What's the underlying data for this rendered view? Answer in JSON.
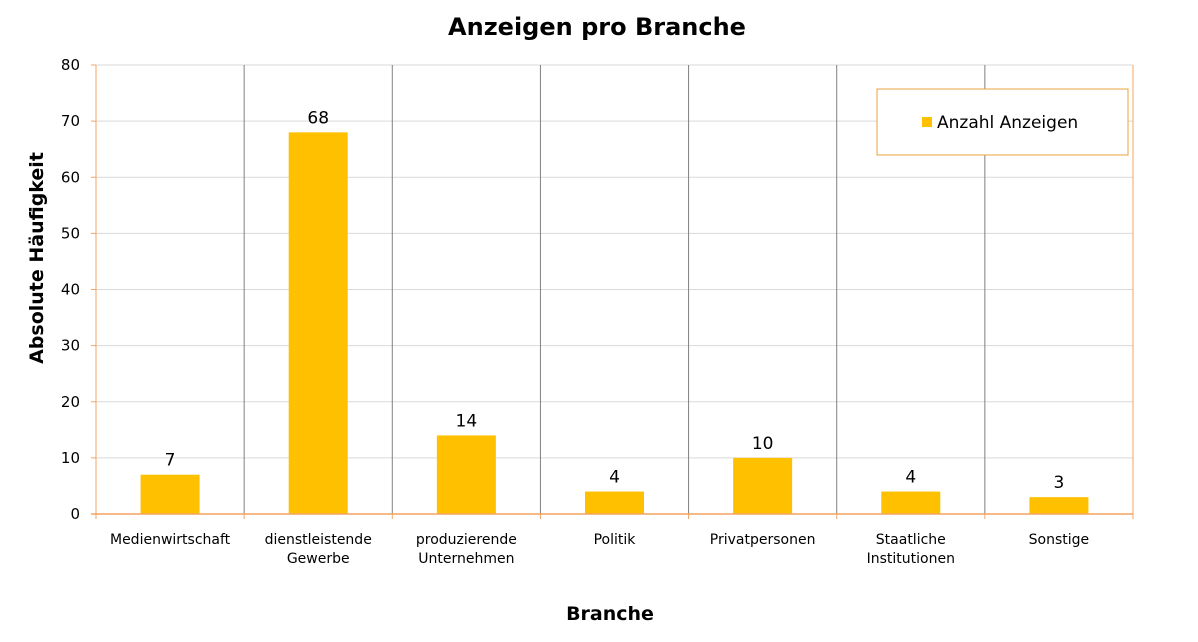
{
  "chart_data": {
    "type": "bar",
    "title": "Anzeigen pro Branche",
    "xlabel": "Branche",
    "ylabel": "Absolute Häufigkeit",
    "categories": [
      [
        "Medienwirtschaft"
      ],
      [
        "dienstleistende",
        "Gewerbe"
      ],
      [
        "produzierende",
        "Unternehmen"
      ],
      [
        "Politik"
      ],
      [
        "Privatpersonen"
      ],
      [
        "Staatliche",
        "Institutionen"
      ],
      [
        "Sonstige"
      ]
    ],
    "series": [
      {
        "name": "Anzahl Anzeigen",
        "values": [
          7,
          68,
          14,
          4,
          10,
          4,
          3
        ],
        "color": "#ffc000"
      }
    ],
    "ylim": [
      0,
      80
    ],
    "yticks": [
      0,
      10,
      20,
      30,
      40,
      50,
      60,
      70,
      80
    ],
    "grid": true,
    "data_labels": true,
    "legend_position": "top-right"
  },
  "colors": {
    "bar": "#ffc000",
    "axis": "#f4a460",
    "horizontal_grid": "#d9d9d9",
    "category_separator": "#808080",
    "legend_border": "#e8a33c"
  }
}
